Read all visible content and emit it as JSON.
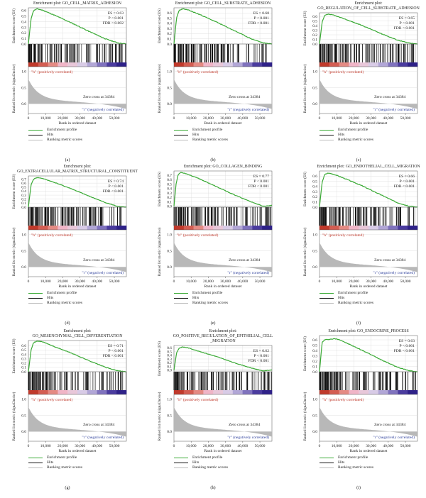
{
  "legend": {
    "enrichment_profile": "Enrichment profile",
    "hits": "Hits",
    "ranking_metric_scores": "Ranking metric scores"
  },
  "panels": [
    {
      "caption": "(a)",
      "title_lines": [
        "Enrichment plot: GO_CELL_MATRIX_ADHESION"
      ],
      "stats": [
        "ES = 0.63",
        "P < 0.001",
        "FDR < 0.002"
      ],
      "seed": 11
    },
    {
      "caption": "(b)",
      "title_lines": [
        "Enrichment plot: GO_CELL_SUBSTRATE_ADHESION"
      ],
      "stats": [
        "ES = 0.68",
        "P < 0.001",
        "FDR < 0.001"
      ],
      "seed": 23
    },
    {
      "caption": "(c)",
      "title_lines": [
        "Enrichment plot:",
        "GO_REGULATION_OF_CELL_SUBSTRATE_ADHESION"
      ],
      "stats": [
        "ES = 0.65",
        "P < 0.001",
        "FDR < 0.001"
      ],
      "seed": 37
    },
    {
      "caption": "(d)",
      "title_lines": [
        "Enrichment plot:",
        "GO_EXTRACELLULAR_MATRIX_STRUCTURAL_CONSTITUENT"
      ],
      "stats": [
        "ES = 0.74",
        "P < 0.001",
        "FDR < 0.001"
      ],
      "seed": 41
    },
    {
      "caption": "(e)",
      "title_lines": [
        "Enrichment plot: GO_COLLAGEN_BINDING"
      ],
      "stats": [
        "ES = 0.77",
        "P < 0.001",
        "FDR < 0.001"
      ],
      "seed": 53
    },
    {
      "caption": "(f)",
      "title_lines": [
        "Enrichment plot: GO_ENDOTHELIAL_CELL_MIGRATION"
      ],
      "stats": [
        "ES = 0.66",
        "P < 0.001",
        "FDR < 0.001"
      ],
      "seed": 67
    },
    {
      "caption": "(g)",
      "title_lines": [
        "Enrichment plot:",
        "GO_MESENCHYMAL_CELL_DIFFERENTIATION"
      ],
      "stats": [
        "ES = 0.71",
        "P < 0.001",
        "FDR < 0.001"
      ],
      "seed": 71
    },
    {
      "caption": "(h)",
      "title_lines": [
        "Enrichment plot:",
        "GO_POSITIVE_REGULATION_OF_EPITHELIAL_CELL",
        "_MIGRATION"
      ],
      "stats": [
        "ES = 0.62",
        "P < 0.001",
        "FDR < 0.001"
      ],
      "seed": 83
    },
    {
      "caption": "(i)",
      "title_lines": [
        "Enrichment plot: GO_ENDOCRINE_PROCESS"
      ],
      "stats": [
        "ES = 0.63",
        "P < 0.001",
        "FDR < 0.001"
      ],
      "seed": 97
    }
  ],
  "chart_data": [
    {
      "type": "line",
      "title": "Enrichment plot: GO_CELL_MATRIX_ADHESION",
      "ylabel": "Enrichment score (ES)",
      "metric_ylabel": "Ranked list metric (signal2noise)",
      "xlabel": "Rank in ordered dataset",
      "x_ticks": [
        0,
        10000,
        20000,
        30000,
        40000,
        50000
      ],
      "x_tick_labels": [
        "0",
        "10,000",
        "20,000",
        "30,000",
        "40,000",
        "50,000"
      ],
      "xlim": [
        0,
        57000
      ],
      "y_ticks": [
        0.0,
        0.1,
        0.2,
        0.3,
        0.4,
        0.5,
        0.6
      ],
      "ylim": [
        0,
        0.65
      ],
      "metric_ticks": [
        1.0,
        0.5,
        0.0
      ],
      "metric_ylim": [
        -0.3,
        1.15
      ],
      "pos_label": "\"h\" (positively correlated)",
      "neg_label": "\"r\" (negatively correlated)",
      "zero_cross_label": "Zero cross at 34384",
      "zero_cross": 34384,
      "es_curve": [
        [
          0,
          0
        ],
        [
          1500,
          0.45
        ],
        [
          3000,
          0.6
        ],
        [
          5000,
          0.63
        ],
        [
          8000,
          0.61
        ],
        [
          15000,
          0.52
        ],
        [
          25000,
          0.38
        ],
        [
          35000,
          0.23
        ],
        [
          45000,
          0.09
        ],
        [
          52000,
          0.02
        ],
        [
          57000,
          0.0
        ]
      ]
    },
    {
      "type": "line",
      "title": "Enrichment plot: GO_CELL_SUBSTRATE_ADHESION",
      "ylabel": "Enrichment score (ES)",
      "metric_ylabel": "Ranked list metric (signal2noise)",
      "xlabel": "Rank in ordered dataset",
      "x_ticks": [
        0,
        10000,
        20000,
        30000,
        40000,
        50000
      ],
      "x_tick_labels": [
        "0",
        "10,000",
        "20,000",
        "30,000",
        "40,000",
        "50,000"
      ],
      "xlim": [
        0,
        57000
      ],
      "y_ticks": [
        0.0,
        0.1,
        0.2,
        0.3,
        0.4,
        0.5,
        0.6
      ],
      "ylim": [
        0,
        0.7
      ],
      "metric_ticks": [
        1.0,
        0.5,
        0.0
      ],
      "metric_ylim": [
        -0.3,
        1.15
      ],
      "pos_label": "\"h\" (positively correlated)",
      "neg_label": "\"r\" (negatively correlated)",
      "zero_cross_label": "Zero cross at 34384",
      "zero_cross": 34384,
      "es_curve": [
        [
          0,
          0
        ],
        [
          1500,
          0.5
        ],
        [
          3000,
          0.65
        ],
        [
          5000,
          0.68
        ],
        [
          8000,
          0.66
        ],
        [
          15000,
          0.57
        ],
        [
          25000,
          0.42
        ],
        [
          35000,
          0.26
        ],
        [
          45000,
          0.1
        ],
        [
          52000,
          0.02
        ],
        [
          57000,
          0.0
        ]
      ]
    },
    {
      "type": "line",
      "title": "Enrichment plot: GO_REGULATION_OF_CELL_SUBSTRATE_ADHESION",
      "ylabel": "Enrichment score (ES)",
      "metric_ylabel": "Ranked list metric (signal2noise)",
      "xlabel": "Rank in ordered dataset",
      "x_ticks": [
        0,
        10000,
        20000,
        30000,
        40000,
        50000
      ],
      "x_tick_labels": [
        "0",
        "10,000",
        "20,000",
        "30,000",
        "40,000",
        "50,000"
      ],
      "xlim": [
        0,
        57000
      ],
      "y_ticks": [
        0.0,
        0.1,
        0.2,
        0.3,
        0.4,
        0.5,
        0.6
      ],
      "ylim": [
        0,
        0.68
      ],
      "metric_ticks": [
        1.0,
        0.5,
        0.0
      ],
      "metric_ylim": [
        -0.3,
        1.15
      ],
      "pos_label": "\"h\" (positively correlated)",
      "neg_label": "\"r\" (negatively correlated)",
      "zero_cross_label": "Zero cross at 34384",
      "zero_cross": 34384,
      "es_curve": [
        [
          0,
          0
        ],
        [
          1500,
          0.47
        ],
        [
          3000,
          0.62
        ],
        [
          5000,
          0.65
        ],
        [
          8000,
          0.63
        ],
        [
          15000,
          0.54
        ],
        [
          25000,
          0.4
        ],
        [
          35000,
          0.24
        ],
        [
          45000,
          0.09
        ],
        [
          52000,
          0.02
        ],
        [
          57000,
          0.0
        ]
      ]
    },
    {
      "type": "line",
      "title": "Enrichment plot: GO_EXTRACELLULAR_MATRIX_STRUCTURAL_CONSTITUENT",
      "ylabel": "Enrichment score (ES)",
      "metric_ylabel": "Ranked list metric (signal2noise)",
      "xlabel": "Rank in ordered dataset",
      "x_ticks": [
        0,
        10000,
        20000,
        30000,
        40000,
        50000
      ],
      "x_tick_labels": [
        "0",
        "10,000",
        "20,000",
        "30,000",
        "40,000",
        "50,000"
      ],
      "xlim": [
        0,
        57000
      ],
      "y_ticks": [
        0.0,
        0.1,
        0.2,
        0.3,
        0.4,
        0.5,
        0.6,
        0.7
      ],
      "ylim": [
        0,
        0.78
      ],
      "metric_ticks": [
        1.0,
        0.5,
        0.0
      ],
      "metric_ylim": [
        -0.3,
        1.15
      ],
      "pos_label": "\"h\" (positively correlated)",
      "neg_label": "\"r\" (negatively correlated)",
      "zero_cross_label": "Zero cross at 34384",
      "zero_cross": 34384,
      "es_curve": [
        [
          0,
          0
        ],
        [
          1500,
          0.55
        ],
        [
          3000,
          0.7
        ],
        [
          5000,
          0.74
        ],
        [
          8000,
          0.72
        ],
        [
          15000,
          0.62
        ],
        [
          25000,
          0.46
        ],
        [
          35000,
          0.28
        ],
        [
          45000,
          0.11
        ],
        [
          52000,
          0.02
        ],
        [
          57000,
          0.0
        ]
      ]
    },
    {
      "type": "line",
      "title": "Enrichment plot: GO_COLLAGEN_BINDING",
      "ylabel": "Enrichment score (ES)",
      "metric_ylabel": "Ranked list metric (signal2noise)",
      "xlabel": "Rank in ordered dataset",
      "x_ticks": [
        0,
        10000,
        20000,
        30000,
        40000,
        50000
      ],
      "x_tick_labels": [
        "0",
        "10,000",
        "20,000",
        "30,000",
        "40,000",
        "50,000"
      ],
      "xlim": [
        0,
        57000
      ],
      "y_ticks": [
        0.0,
        0.1,
        0.2,
        0.3,
        0.4,
        0.5,
        0.6,
        0.7
      ],
      "ylim": [
        -0.02,
        0.8
      ],
      "metric_ticks": [
        1.0,
        0.5,
        0.0
      ],
      "metric_ylim": [
        -0.3,
        1.15
      ],
      "pos_label": "\"h\" (positively correlated)",
      "neg_label": "\"r\" (negatively correlated)",
      "zero_cross_label": "Zero cross at 34384",
      "zero_cross": 34384,
      "es_curve": [
        [
          0,
          0
        ],
        [
          1200,
          0.5
        ],
        [
          2500,
          0.72
        ],
        [
          4000,
          0.77
        ],
        [
          7000,
          0.74
        ],
        [
          15000,
          0.62
        ],
        [
          25000,
          0.44
        ],
        [
          35000,
          0.26
        ],
        [
          45000,
          0.1
        ],
        [
          52000,
          0.0
        ],
        [
          57000,
          0.02
        ]
      ]
    },
    {
      "type": "line",
      "title": "Enrichment plot: GO_ENDOTHELIAL_CELL_MIGRATION",
      "ylabel": "Enrichment score (ES)",
      "metric_ylabel": "Ranked list metric (signal2noise)",
      "xlabel": "Rank in ordered dataset",
      "x_ticks": [
        0,
        10000,
        20000,
        30000,
        40000,
        50000
      ],
      "x_tick_labels": [
        "0",
        "10,000",
        "20,000",
        "30,000",
        "40,000",
        "50,000"
      ],
      "xlim": [
        0,
        57000
      ],
      "y_ticks": [
        0.0,
        0.1,
        0.2,
        0.3,
        0.4,
        0.5,
        0.6
      ],
      "ylim": [
        0,
        0.7
      ],
      "metric_ticks": [
        1.0,
        0.5,
        0.0
      ],
      "metric_ylim": [
        -0.3,
        1.15
      ],
      "pos_label": "\"h\" (positively correlated)",
      "neg_label": "\"r\" (negatively correlated)",
      "zero_cross_label": "Zero cross at 34384",
      "zero_cross": 34384,
      "es_curve": [
        [
          0,
          0
        ],
        [
          1500,
          0.48
        ],
        [
          3000,
          0.63
        ],
        [
          5000,
          0.66
        ],
        [
          8000,
          0.64
        ],
        [
          15000,
          0.55
        ],
        [
          25000,
          0.41
        ],
        [
          35000,
          0.25
        ],
        [
          45000,
          0.09
        ],
        [
          52000,
          0.02
        ],
        [
          57000,
          0.0
        ]
      ]
    },
    {
      "type": "line",
      "title": "Enrichment plot: GO_MESENCHYMAL_CELL_DIFFERENTIATION",
      "ylabel": "Enrichment score (ES)",
      "metric_ylabel": "Ranked list metric (signal2noise)",
      "xlabel": "Rank in ordered dataset",
      "x_ticks": [
        0,
        10000,
        20000,
        30000,
        40000,
        50000
      ],
      "x_tick_labels": [
        "0",
        "10,000",
        "20,000",
        "30,000",
        "40,000",
        "50,000"
      ],
      "xlim": [
        0,
        57000
      ],
      "y_ticks": [
        0.0,
        0.1,
        0.2,
        0.3,
        0.4,
        0.5,
        0.6
      ],
      "ylim": [
        0,
        0.72
      ],
      "metric_ticks": [
        1.0,
        0.5,
        0.0
      ],
      "metric_ylim": [
        -0.3,
        1.15
      ],
      "pos_label": "\"h\" (positively correlated)",
      "neg_label": "\"r\" (negatively correlated)",
      "zero_cross_label": "Zero cross at 34384",
      "zero_cross": 34384,
      "es_curve": [
        [
          0,
          0
        ],
        [
          1500,
          0.5
        ],
        [
          3000,
          0.67
        ],
        [
          5500,
          0.71
        ],
        [
          9000,
          0.68
        ],
        [
          15000,
          0.58
        ],
        [
          25000,
          0.43
        ],
        [
          35000,
          0.26
        ],
        [
          45000,
          0.1
        ],
        [
          52000,
          0.02
        ],
        [
          57000,
          0.0
        ]
      ]
    },
    {
      "type": "line",
      "title": "Enrichment plot: GO_POSITIVE_REGULATION_OF_EPITHELIAL_CELL_MIGRATION",
      "ylabel": "Enrichment score (ES)",
      "metric_ylabel": "Ranked list metric (signal2noise)",
      "xlabel": "Rank in ordered dataset",
      "x_ticks": [
        0,
        10000,
        20000,
        30000,
        40000,
        50000
      ],
      "x_tick_labels": [
        "0",
        "10,000",
        "20,000",
        "30,000",
        "40,000",
        "50,000"
      ],
      "xlim": [
        0,
        57000
      ],
      "y_ticks": [
        0.0,
        0.1,
        0.2,
        0.3,
        0.4,
        0.5,
        0.6
      ],
      "ylim": [
        -0.04,
        0.66
      ],
      "metric_ticks": [
        1.0,
        0.5,
        0.0
      ],
      "metric_ylim": [
        -0.3,
        1.15
      ],
      "pos_label": "\"h\" (positively correlated)",
      "neg_label": "\"r\" (negatively correlated)",
      "zero_cross_label": "Zero cross at 34384",
      "zero_cross": 34384,
      "es_curve": [
        [
          0,
          0
        ],
        [
          1500,
          0.46
        ],
        [
          3000,
          0.59
        ],
        [
          5000,
          0.62
        ],
        [
          8000,
          0.6
        ],
        [
          15000,
          0.5
        ],
        [
          25000,
          0.36
        ],
        [
          35000,
          0.2
        ],
        [
          45000,
          0.06
        ],
        [
          52000,
          -0.02
        ],
        [
          57000,
          0.01
        ]
      ]
    },
    {
      "type": "line",
      "title": "Enrichment plot: GO_ENDOCRINE_PROCESS",
      "ylabel": "Enrichment score (ES)",
      "metric_ylabel": "Ranked list metric (signal2noise)",
      "xlabel": "Rank in ordered dataset",
      "x_ticks": [
        0,
        10000,
        20000,
        30000,
        40000,
        50000
      ],
      "x_tick_labels": [
        "0",
        "10,000",
        "20,000",
        "30,000",
        "40,000",
        "50,000"
      ],
      "xlim": [
        0,
        57000
      ],
      "y_ticks": [
        0.0,
        0.1,
        0.2,
        0.3,
        0.4,
        0.5,
        0.6
      ],
      "ylim": [
        0,
        0.68
      ],
      "metric_ticks": [
        1.0,
        0.5,
        0.0
      ],
      "metric_ylim": [
        -0.3,
        1.15
      ],
      "pos_label": "\"h\" (positively correlated)",
      "neg_label": "\"r\" (negatively correlated)",
      "zero_cross_label": "Zero cross at 34384",
      "zero_cross": 34384,
      "es_curve": [
        [
          0,
          0
        ],
        [
          1500,
          0.55
        ],
        [
          3000,
          0.6
        ],
        [
          6000,
          0.61
        ],
        [
          9000,
          0.62
        ],
        [
          12000,
          0.6
        ],
        [
          15000,
          0.55
        ],
        [
          25000,
          0.4
        ],
        [
          35000,
          0.24
        ],
        [
          45000,
          0.09
        ],
        [
          52000,
          0.02
        ],
        [
          57000,
          0.0
        ]
      ]
    }
  ],
  "colors": {
    "es_line": "#3aaa35",
    "hits": "#111111",
    "metric_fill": "#b8b8b8",
    "pos_text": "#c0392b",
    "neg_text": "#2c3e9b",
    "grid": "#d9d9d9"
  }
}
